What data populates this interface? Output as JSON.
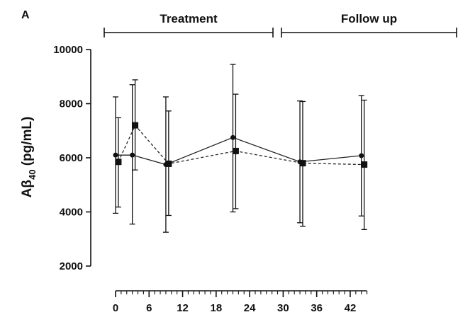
{
  "chart_data": {
    "type": "line",
    "panel_label": "A",
    "ylabel_main": "Aβ",
    "ylabel_sub": "40",
    "ylabel_unit": " (pg/mL)",
    "ylim": [
      2000,
      10000
    ],
    "yticks": [
      2000,
      4000,
      6000,
      8000,
      10000
    ],
    "xlim": [
      0,
      45
    ],
    "xticks": [
      0,
      6,
      12,
      18,
      24,
      30,
      36,
      42
    ],
    "periods": [
      {
        "label": "Treatment",
        "from": -1,
        "to": 21
      },
      {
        "label": "Follow up",
        "from": 22,
        "to": 45
      }
    ],
    "series": [
      {
        "marker": "circle",
        "line": "solid",
        "x": [
          0,
          3,
          9,
          21,
          33,
          44
        ],
        "y": [
          6100,
          6100,
          5750,
          6750,
          5850,
          6080
        ],
        "err_low": [
          3950,
          3550,
          3250,
          4000,
          3600,
          3850
        ],
        "err_high": [
          8250,
          8700,
          8250,
          9450,
          8100,
          8300
        ]
      },
      {
        "marker": "square",
        "line": "dashed",
        "x": [
          0.5,
          3.5,
          9.5,
          21.5,
          33.5,
          44.5
        ],
        "y": [
          5850,
          7200,
          5780,
          6250,
          5800,
          5750
        ],
        "err_low": [
          4180,
          5550,
          3870,
          4120,
          3470,
          3350
        ],
        "err_high": [
          7480,
          8880,
          7730,
          8350,
          8080,
          8130
        ]
      }
    ]
  }
}
